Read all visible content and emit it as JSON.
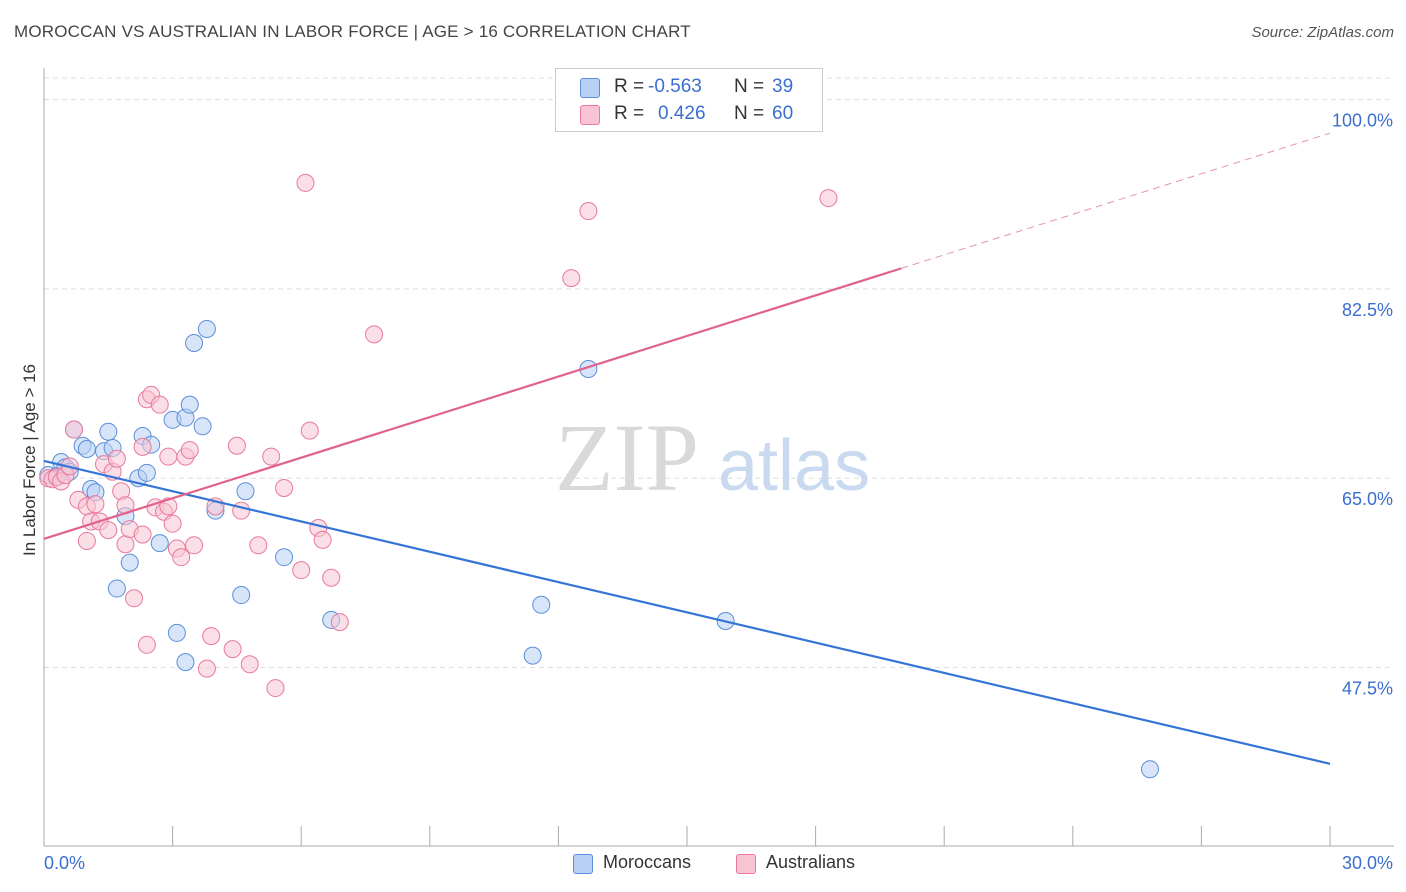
{
  "title": "MOROCCAN VS AUSTRALIAN IN LABOR FORCE | AGE > 16 CORRELATION CHART",
  "source": "Source: ZipAtlas.com",
  "watermark": {
    "zip": "ZIP",
    "atlas": "atlas"
  },
  "legend_stats": [
    {
      "r_label": "R = ",
      "r_value": "-0.563",
      "n_label": "N = ",
      "n_value": "39"
    },
    {
      "r_label": "R = ",
      "r_value": "0.426",
      "n_label": "N = ",
      "n_value": "60"
    }
  ],
  "colors": {
    "moroccans_fill": "#b8d0f3",
    "moroccans_stroke": "#5b8fd9",
    "moroccans_line": "#3575d6",
    "australians_fill": "#f7c4d3",
    "australians_stroke": "#e8799d",
    "australians_line": "#e0628d",
    "tick_label": "#3a6fd0"
  },
  "chart_data": {
    "type": "scatter",
    "xlabel": "",
    "ylabel": "In Labor Force | Age > 16",
    "xlim": [
      0,
      30
    ],
    "ylim": [
      31,
      102
    ],
    "x_tick_labels": [
      "0.0%",
      "30.0%"
    ],
    "y_ticks": [
      47.5,
      65.0,
      82.5,
      100.0
    ],
    "y_tick_labels": [
      "47.5%",
      "65.0%",
      "82.5%",
      "100.0%"
    ],
    "grid": "horizontal dashed",
    "legend_position": "top-center",
    "series": [
      {
        "name": "Moroccans",
        "points": [
          [
            0.1,
            65.3
          ],
          [
            0.3,
            65.2
          ],
          [
            0.4,
            66.5
          ],
          [
            0.5,
            66.0
          ],
          [
            0.6,
            65.6
          ],
          [
            0.7,
            69.5
          ],
          [
            0.9,
            68.0
          ],
          [
            1.0,
            67.7
          ],
          [
            1.1,
            64.0
          ],
          [
            1.2,
            63.7
          ],
          [
            1.4,
            67.5
          ],
          [
            1.5,
            69.3
          ],
          [
            1.6,
            67.8
          ],
          [
            1.7,
            54.8
          ],
          [
            1.9,
            61.5
          ],
          [
            2.0,
            57.2
          ],
          [
            2.2,
            65.0
          ],
          [
            2.3,
            68.9
          ],
          [
            2.4,
            65.5
          ],
          [
            2.5,
            68.1
          ],
          [
            2.7,
            59.0
          ],
          [
            3.0,
            70.4
          ],
          [
            3.1,
            50.7
          ],
          [
            3.3,
            48.0
          ],
          [
            3.3,
            70.6
          ],
          [
            3.4,
            71.8
          ],
          [
            3.5,
            77.5
          ],
          [
            3.7,
            69.8
          ],
          [
            3.8,
            78.8
          ],
          [
            4.0,
            62.0
          ],
          [
            4.6,
            54.2
          ],
          [
            4.7,
            63.8
          ],
          [
            5.6,
            57.7
          ],
          [
            6.7,
            51.9
          ],
          [
            11.4,
            48.6
          ],
          [
            11.6,
            53.3
          ],
          [
            12.7,
            75.1
          ],
          [
            15.9,
            51.8
          ],
          [
            25.8,
            38.1
          ]
        ]
      },
      {
        "name": "Australians",
        "points": [
          [
            0.1,
            65.0
          ],
          [
            0.2,
            64.9
          ],
          [
            0.3,
            65.1
          ],
          [
            0.4,
            64.7
          ],
          [
            0.5,
            65.3
          ],
          [
            0.6,
            66.1
          ],
          [
            0.7,
            69.5
          ],
          [
            0.8,
            63.0
          ],
          [
            1.0,
            62.4
          ],
          [
            1.0,
            59.2
          ],
          [
            1.1,
            61.0
          ],
          [
            1.2,
            62.6
          ],
          [
            1.3,
            61.0
          ],
          [
            1.4,
            66.3
          ],
          [
            1.5,
            60.2
          ],
          [
            1.6,
            65.6
          ],
          [
            1.7,
            66.8
          ],
          [
            1.8,
            63.8
          ],
          [
            1.9,
            62.5
          ],
          [
            1.9,
            58.9
          ],
          [
            2.0,
            60.3
          ],
          [
            2.1,
            53.9
          ],
          [
            2.3,
            67.9
          ],
          [
            2.3,
            59.8
          ],
          [
            2.4,
            49.6
          ],
          [
            2.4,
            72.3
          ],
          [
            2.5,
            72.7
          ],
          [
            2.6,
            62.3
          ],
          [
            2.7,
            71.8
          ],
          [
            2.8,
            61.9
          ],
          [
            2.9,
            67.0
          ],
          [
            2.9,
            62.4
          ],
          [
            3.0,
            60.8
          ],
          [
            3.1,
            58.5
          ],
          [
            3.2,
            57.7
          ],
          [
            3.3,
            67.0
          ],
          [
            3.4,
            67.6
          ],
          [
            3.5,
            58.8
          ],
          [
            3.8,
            47.4
          ],
          [
            3.9,
            50.4
          ],
          [
            4.0,
            62.4
          ],
          [
            4.4,
            49.2
          ],
          [
            4.5,
            68.0
          ],
          [
            4.6,
            62.0
          ],
          [
            4.8,
            47.8
          ],
          [
            5.0,
            58.8
          ],
          [
            5.3,
            67.0
          ],
          [
            5.4,
            45.6
          ],
          [
            5.6,
            64.1
          ],
          [
            6.0,
            56.5
          ],
          [
            6.1,
            92.3
          ],
          [
            6.2,
            69.4
          ],
          [
            6.4,
            60.4
          ],
          [
            6.5,
            59.3
          ],
          [
            6.7,
            55.8
          ],
          [
            6.9,
            51.7
          ],
          [
            7.7,
            78.3
          ],
          [
            12.3,
            83.5
          ],
          [
            12.7,
            89.7
          ],
          [
            18.3,
            90.9
          ]
        ]
      }
    ],
    "trend_lines": [
      {
        "series": "Moroccans",
        "x": [
          0,
          30
        ],
        "y": [
          66.6,
          38.6
        ],
        "style": "solid"
      },
      {
        "series": "Australians",
        "x": [
          0,
          20
        ],
        "y": [
          59.4,
          84.4
        ],
        "style": "solid"
      },
      {
        "series": "Australians",
        "x": [
          20,
          30
        ],
        "y": [
          84.4,
          96.9
        ],
        "style": "dashed"
      }
    ]
  }
}
